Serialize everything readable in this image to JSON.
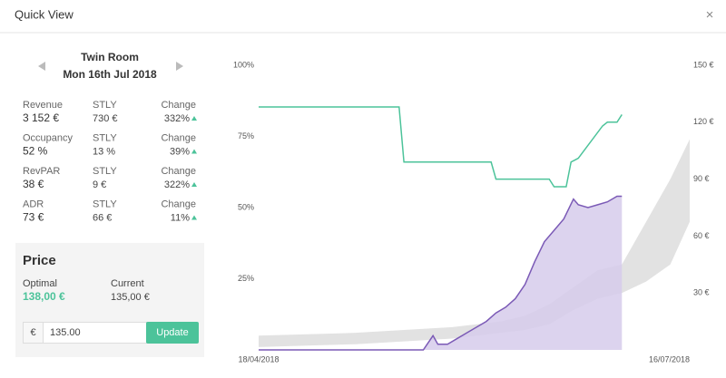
{
  "header": {
    "title": "Quick View",
    "close": "×"
  },
  "room": {
    "name": "Twin Room",
    "date": "Mon 16th Jul 2018"
  },
  "metrics": [
    {
      "label": "Revenue",
      "value": "3 152 €",
      "stly_label": "STLY",
      "stly": "730 €",
      "change_label": "Change",
      "change": "332%"
    },
    {
      "label": "Occupancy",
      "value": "52 %",
      "stly_label": "STLY",
      "stly": "13 %",
      "change_label": "Change",
      "change": "39%"
    },
    {
      "label": "RevPAR",
      "value": "38 €",
      "stly_label": "STLY",
      "stly": "9 €",
      "change_label": "Change",
      "change": "322%"
    },
    {
      "label": "ADR",
      "value": "73 €",
      "stly_label": "STLY",
      "stly": "66 €",
      "change_label": "Change",
      "change": "11%"
    }
  ],
  "price": {
    "title": "Price",
    "optimal_label": "Optimal",
    "optimal": "138,00 €",
    "current_label": "Current",
    "current": "135,00 €",
    "currency": "€",
    "input": "135.00",
    "button": "Update"
  },
  "chart": {
    "xlim": [
      0,
      89
    ],
    "xticks": [
      {
        "value": 0,
        "label": "18/04/2018"
      },
      {
        "value": 89,
        "label": "16/07/2018"
      }
    ],
    "ylim": [
      0,
      100
    ],
    "yticks": [
      {
        "value": 25,
        "label": "25%"
      },
      {
        "value": 50,
        "label": "50%"
      },
      {
        "value": 75,
        "label": "75%"
      },
      {
        "value": 100,
        "label": "100%"
      }
    ],
    "y2lim": [
      0,
      150
    ],
    "y2ticks": [
      {
        "value": 30,
        "label": "30 €"
      },
      {
        "value": 60,
        "label": "60 €"
      },
      {
        "value": 90,
        "label": "90 €"
      },
      {
        "value": 120,
        "label": "120 €"
      },
      {
        "value": 150,
        "label": "150 €"
      }
    ],
    "band": {
      "color": "#e2e2e2",
      "x": [
        0,
        10,
        20,
        30,
        40,
        50,
        55,
        60,
        65,
        70,
        75,
        80,
        85,
        89
      ],
      "lower": [
        1,
        1.5,
        2,
        3,
        4,
        6,
        7,
        9,
        14,
        18,
        20,
        24,
        30,
        45
      ],
      "upper": [
        5,
        5.5,
        6,
        7,
        8,
        10,
        12,
        16,
        22,
        28,
        30,
        45,
        60,
        74
      ]
    },
    "series": [
      {
        "color": "#7b5ab6",
        "fill": "#d6cbeb",
        "axis": "y",
        "x": [
          0,
          34,
          36,
          37,
          39,
          41,
          43,
          45,
          47,
          49,
          51,
          53,
          55,
          57,
          59,
          61,
          63,
          65,
          66,
          68,
          70,
          72,
          74,
          75
        ],
        "values": [
          0,
          0,
          5,
          2,
          2,
          4,
          6,
          8,
          10,
          13,
          15,
          18,
          23,
          31,
          38,
          42,
          46,
          53,
          51,
          50,
          51,
          52,
          54,
          54
        ]
      },
      {
        "color": "#4cc39a",
        "axis": "y2",
        "x": [
          0,
          29,
          30,
          48,
          49,
          60,
          61,
          63.5,
          64.5,
          66,
          71,
          72,
          74,
          75
        ],
        "values": [
          128,
          128,
          99,
          99,
          90,
          90,
          86,
          86,
          99,
          101,
          118,
          120,
          120,
          124
        ]
      }
    ]
  }
}
